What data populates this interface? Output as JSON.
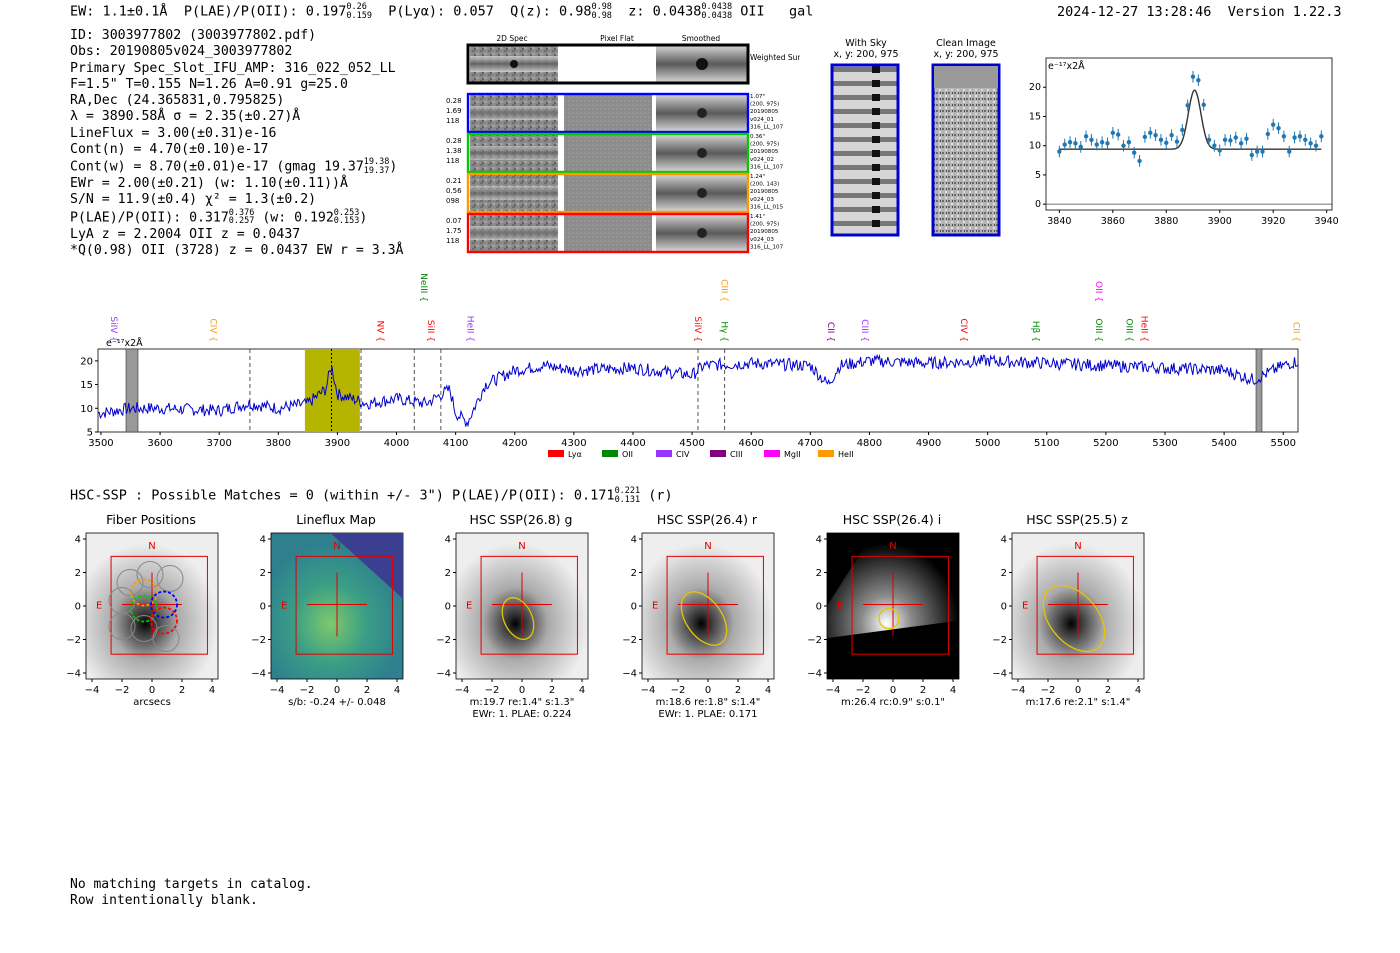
{
  "header": {
    "ew": "EW: 1.1±0.1Å",
    "plae": "P(LAE)/P(OII): 0.197",
    "plae_hi": "0.26",
    "plae_lo": "0.159",
    "plya": "P(Lyα): 0.057",
    "q": "Q(z): 0.98",
    "q_hi": "0.98",
    "q_lo": "0.98",
    "z": "z: 0.0438",
    "z_hi": "0.0438",
    "z_lo": "0.0438",
    "line": "OII",
    "cls": "gal",
    "timestamp": "2024-12-27 13:28:46",
    "version": "Version 1.22.3"
  },
  "info": {
    "l1": "ID: 3003977802 (3003977802.pdf)",
    "l2": "Obs: 20190805v024_3003977802",
    "l3": "Primary Spec_Slot_IFU_AMP: 316_022_052_LL",
    "l4": "F=1.5\"  T=0.155  N=1.26  A=0.91  g=25.0",
    "l5": "RA,Dec (24.365831,0.795825)",
    "l6": "λ = 3890.58Å  σ = 2.35(±0.27)Å",
    "l7": "LineFlux = 3.00(±0.31)e-16",
    "l8": "Cont(n) = 4.70(±0.10)e-17",
    "l9": "Cont(w) = 8.70(±0.01)e-17 (gmag 19.37",
    "l9_hi": "19.38",
    "l9_lo": "19.37",
    "l9_end": ")",
    "l10": "EWr = 2.00(±0.21) (w: 1.10(±0.11))Å",
    "l11": "S/N = 11.9(±0.4)  χ² = 1.3(±0.2)",
    "l12": "P(LAE)/P(OII): 0.317",
    "l12_hi": "0.376",
    "l12_lo": "0.257",
    "l12_mid": " (w: 0.192",
    "l12_hi2": "0.253",
    "l12_lo2": "0.153",
    "l12_end": ")",
    "l13": "LyA z = 2.2004  OII z = 0.0437",
    "l14": "*Q(0.98) OII (3728) z = 0.0437  EW r = 3.3Å"
  },
  "cutouts": {
    "col_titles": [
      "2D Spec",
      "Pixel Flat",
      "Smoothed"
    ],
    "weighted_label": "Weighted Sum",
    "rows": [
      {
        "color": "#0000ff",
        "left": [
          "0.28",
          "1.69",
          "118"
        ],
        "right": [
          "1.07\"",
          "(200, 975)",
          "20190805",
          "v024_01",
          "316_LL_107"
        ]
      },
      {
        "color": "#00cc00",
        "left": [
          "0.28",
          "1.38",
          "118"
        ],
        "right": [
          "0.36\"",
          "(200, 975)",
          "20190805",
          "v024_02",
          "316_LL_107"
        ]
      },
      {
        "color": "#ff9900",
        "left": [
          "0.21",
          "0.56",
          "098"
        ],
        "right": [
          "1.24\"",
          "(200, 143)",
          "20190805",
          "v024_03",
          "316_LL_015"
        ]
      },
      {
        "color": "#ff0000",
        "left": [
          "0.07",
          "1.75",
          "118"
        ],
        "right": [
          "1.41\"",
          "(200, 975)",
          "20190805",
          "v024_03",
          "316_LL_107"
        ]
      }
    ]
  },
  "sky": {
    "with_sky_title": "With Sky",
    "with_sky_sub": "x, y: 200, 975",
    "clean_title": "Clean Image",
    "clean_sub": "x, y: 200, 975"
  },
  "zoom_chart_data": {
    "type": "scatter",
    "ylabel": "e⁻¹⁷x2Å",
    "xlim": [
      3835,
      3942
    ],
    "ylim": [
      -1,
      25
    ],
    "xticks": [
      3840,
      3860,
      3880,
      3900,
      3920,
      3940
    ],
    "yticks": [
      0,
      5,
      10,
      15,
      20
    ],
    "x": [
      3840,
      3842,
      3844,
      3846,
      3848,
      3850,
      3852,
      3854,
      3856,
      3858,
      3860,
      3862,
      3864,
      3866,
      3868,
      3870,
      3872,
      3874,
      3876,
      3878,
      3880,
      3882,
      3884,
      3886,
      3888,
      3890,
      3892,
      3894,
      3896,
      3898,
      3900,
      3902,
      3904,
      3906,
      3908,
      3910,
      3912,
      3914,
      3916,
      3918,
      3920,
      3922,
      3924,
      3926,
      3928,
      3930,
      3932,
      3934,
      3936,
      3938
    ],
    "y": [
      9.0,
      10.2,
      10.6,
      10.4,
      9.8,
      11.6,
      11.0,
      10.2,
      10.6,
      10.4,
      12.2,
      11.9,
      10.0,
      10.6,
      8.8,
      7.4,
      11.5,
      12.2,
      11.8,
      11.0,
      10.5,
      11.8,
      10.7,
      12.7,
      16.9,
      21.8,
      21.2,
      17.0,
      11.0,
      10.0,
      9.2,
      11.0,
      10.9,
      11.4,
      10.4,
      11.2,
      8.4,
      9.0,
      9.0,
      12.0,
      13.6,
      13.0,
      11.6,
      9.0,
      11.4,
      11.6,
      11.0,
      10.4,
      10.0,
      11.6
    ],
    "fit": {
      "continuum": 9.4,
      "amp": 10.1,
      "center": 3890.6,
      "sigma": 2.35
    }
  },
  "spec_chart_data": {
    "type": "line",
    "ylabel": "e⁻¹⁷x2Å",
    "xlim": [
      3495,
      5525
    ],
    "ylim": [
      5,
      22.5
    ],
    "xticks": [
      3500,
      3600,
      3700,
      3800,
      3900,
      4000,
      4100,
      4200,
      4300,
      4400,
      4500,
      4600,
      4700,
      4800,
      4900,
      5000,
      5100,
      5200,
      5300,
      5400,
      5500
    ],
    "yticks": [
      5,
      10,
      15,
      20
    ],
    "knots": [
      [
        3500,
        9
      ],
      [
        3550,
        10
      ],
      [
        3600,
        10
      ],
      [
        3700,
        9.5
      ],
      [
        3750,
        11
      ],
      [
        3800,
        10
      ],
      [
        3850,
        11
      ],
      [
        3880,
        14
      ],
      [
        3890,
        19
      ],
      [
        3900,
        13
      ],
      [
        3950,
        11
      ],
      [
        4000,
        12
      ],
      [
        4050,
        11
      ],
      [
        4090,
        14
      ],
      [
        4100,
        9
      ],
      [
        4120,
        7
      ],
      [
        4150,
        15
      ],
      [
        4200,
        18
      ],
      [
        4250,
        19
      ],
      [
        4300,
        18
      ],
      [
        4400,
        18.5
      ],
      [
        4500,
        17
      ],
      [
        4520,
        19
      ],
      [
        4600,
        19.5
      ],
      [
        4700,
        19
      ],
      [
        4730,
        15
      ],
      [
        4750,
        19
      ],
      [
        4800,
        20
      ],
      [
        4900,
        19.5
      ],
      [
        5000,
        20
      ],
      [
        5100,
        19.5
      ],
      [
        5200,
        19
      ],
      [
        5300,
        18.5
      ],
      [
        5400,
        18
      ],
      [
        5450,
        16
      ],
      [
        5500,
        19
      ],
      [
        5525,
        20
      ]
    ],
    "highlight": [
      3845,
      3938
    ],
    "lines": [
      {
        "label": "SiIV",
        "x": 3512,
        "color": "#9933ff",
        "tier": 0
      },
      {
        "label": "CIV",
        "x": 3680,
        "color": "#ff9900",
        "tier": 0
      },
      {
        "label": "NV",
        "x": 3963,
        "color": "#ff0000",
        "tier": 0
      },
      {
        "label": "NeIII",
        "x": 4036,
        "color": "#008800",
        "tier": 1
      },
      {
        "label": "SiII",
        "x": 4048,
        "color": "#ff0000",
        "tier": 0
      },
      {
        "label": "HeII",
        "x": 4115,
        "color": "#9933ff",
        "tier": 0
      },
      {
        "label": "SiIV",
        "x": 4500,
        "color": "#ff0000",
        "tier": 0
      },
      {
        "label": "CIII",
        "x": 4545,
        "color": "#ff9900",
        "tier": 1
      },
      {
        "label": "Hγ",
        "x": 4545,
        "color": "#008800",
        "tier": 0
      },
      {
        "label": "CII",
        "x": 4725,
        "color": "#800080",
        "tier": 0
      },
      {
        "label": "CIII",
        "x": 4782,
        "color": "#9933ff",
        "tier": 0
      },
      {
        "label": "CIV",
        "x": 4950,
        "color": "#ff0000",
        "tier": 0
      },
      {
        "label": "Hβ",
        "x": 5072,
        "color": "#008800",
        "tier": 0
      },
      {
        "label": "OII",
        "x": 5178,
        "color": "#ff00ff",
        "tier": 1
      },
      {
        "label": "OIII",
        "x": 5178,
        "color": "#008800",
        "tier": 0
      },
      {
        "label": "OIII",
        "x": 5230,
        "color": "#008800",
        "tier": 0
      },
      {
        "label": "HeII",
        "x": 5255,
        "color": "#ff0000",
        "tier": 0
      },
      {
        "label": "CII",
        "x": 5512,
        "color": "#ff9900",
        "tier": 0
      }
    ],
    "dashed": [
      3752,
      3940,
      4030,
      4075,
      4510,
      4555
    ],
    "legend": [
      {
        "label": "Lyα",
        "color": "#ff0000"
      },
      {
        "label": "OII",
        "color": "#008800"
      },
      {
        "label": "CIV",
        "color": "#9933ff"
      },
      {
        "label": "CIII",
        "color": "#800080"
      },
      {
        "label": "MgII",
        "color": "#ff00ff"
      },
      {
        "label": "HeII",
        "color": "#ff9900"
      }
    ]
  },
  "hsc": {
    "line": "HSC-SSP : Possible Matches = 0 (within +/- 3\")  P(LAE)/P(OII): 0.171",
    "hi": "0.221",
    "lo": "0.131",
    "end": " (r)"
  },
  "panels": [
    {
      "title": "Fiber Positions",
      "cap1": "arcsecs",
      "cap2": ""
    },
    {
      "title": "Lineflux Map",
      "cap1": "s/b: -0.24 +/- 0.048",
      "cap2": ""
    },
    {
      "title": "HSC SSP(26.8) g",
      "cap1": "m:19.7  re:1.4\"  s:1.3\"",
      "cap2": "EWr: 1. PLAE: 0.224"
    },
    {
      "title": "HSC SSP(26.4) r",
      "cap1": "m:18.6  re:1.8\"  s:1.4\"",
      "cap2": "EWr: 1. PLAE: 0.171"
    },
    {
      "title": "HSC SSP(26.4) i",
      "cap1": "m:26.4 rc:0.9\"  s:0.1\"",
      "cap2": ""
    },
    {
      "title": "HSC SSP(25.5) z",
      "cap1": "m:17.6  re:2.1\"  s:1.4\"",
      "cap2": ""
    }
  ],
  "panel_axes": {
    "xticks": [
      "−4",
      "−2",
      "0",
      "2",
      "4"
    ],
    "yticks": [
      "4",
      "2",
      "0",
      "−2",
      "−4"
    ],
    "north": "N",
    "east": "E"
  },
  "footer": {
    "l1": "No matching targets in catalog.",
    "l2": "Row intentionally blank."
  }
}
